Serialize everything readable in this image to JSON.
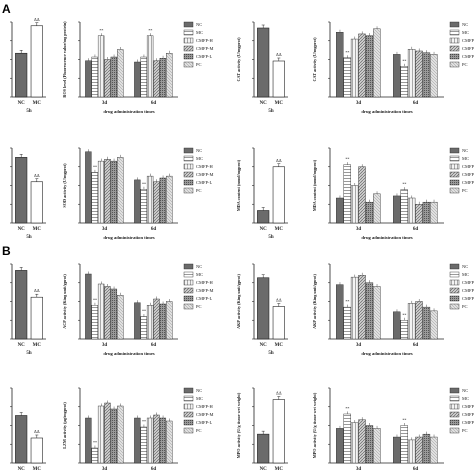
{
  "panel_letters": [
    "A",
    "B"
  ],
  "colors": {
    "nc": "#6b6b6b",
    "mc": "#ffffff",
    "cmfp_h": "#e3e3e3",
    "cmfp_m": "#bdbdbd",
    "cmfp_l": "#8f8f8f",
    "pc": "#d8d8d8",
    "ink": "#222222"
  },
  "chart_data": [
    {
      "type": "bar",
      "title": "",
      "xlabel": "",
      "ylabel": "",
      "categories": [
        "NC",
        "MC"
      ],
      "x_caption": "5h",
      "ylim": [
        0,
        300
      ],
      "yticks": [],
      "values": [
        175,
        285
      ],
      "sig": [
        "",
        "ΔΔ"
      ],
      "legend": []
    },
    {
      "type": "bar",
      "title": "",
      "xlabel": "drug administration times",
      "ylabel": "ROS level (Fluorescence value/mg protein)",
      "categories": [
        "3d",
        "6d"
      ],
      "ylim": [
        0,
        300
      ],
      "yticks": [],
      "series": [
        {
          "name": "NC",
          "values": [
            145,
            140
          ],
          "sig": [
            "",
            ""
          ]
        },
        {
          "name": "MC",
          "values": [
            160,
            160
          ],
          "sig": [
            "",
            ""
          ]
        },
        {
          "name": "CMFP-H",
          "values": [
            245,
            245
          ],
          "sig": [
            "**",
            "**"
          ]
        },
        {
          "name": "CMFP-M",
          "values": [
            150,
            145
          ],
          "sig": [
            "",
            ""
          ]
        },
        {
          "name": "CMFP-L",
          "values": [
            160,
            155
          ],
          "sig": [
            "",
            ""
          ]
        },
        {
          "name": "PC",
          "values": [
            190,
            175
          ],
          "sig": [
            "",
            ""
          ]
        }
      ],
      "legend": [
        "NC",
        "MC",
        "CMFP-H",
        "CMFP-M",
        "CMFP-L",
        "PC"
      ]
    },
    {
      "type": "bar",
      "title": "",
      "xlabel": "",
      "ylabel": "CAT activity (U/mgprot)",
      "categories": [
        "NC",
        "MC"
      ],
      "x_caption": "5h",
      "ylim": [
        0,
        1500
      ],
      "yticks": [],
      "values": [
        1380,
        720
      ],
      "sig": [
        "",
        "ΔΔ"
      ],
      "legend": []
    },
    {
      "type": "bar",
      "title": "",
      "xlabel": "drug administration times",
      "ylabel": "CAT activity (U/mgprot)",
      "categories": [
        "3d",
        "6d"
      ],
      "ylim": [
        0,
        2200
      ],
      "yticks": [],
      "series": [
        {
          "name": "NC",
          "values": [
            1900,
            1250
          ],
          "sig": [
            "",
            ""
          ]
        },
        {
          "name": "MC",
          "values": [
            1150,
            900
          ],
          "sig": [
            "**",
            "**"
          ]
        },
        {
          "name": "CMFP-H",
          "values": [
            1700,
            1400
          ],
          "sig": [
            "",
            ""
          ]
        },
        {
          "name": "CMFP-M",
          "values": [
            1850,
            1350
          ],
          "sig": [
            "",
            ""
          ]
        },
        {
          "name": "CMFP-L",
          "values": [
            1800,
            1300
          ],
          "sig": [
            "",
            ""
          ]
        },
        {
          "name": "PC",
          "values": [
            2000,
            1250
          ],
          "sig": [
            "",
            ""
          ]
        }
      ],
      "legend": [
        "NC",
        "MC",
        "CMFP-H",
        "CMFP-M",
        "CMFP-L",
        "PC"
      ]
    },
    {
      "type": "bar",
      "title": "",
      "xlabel": "",
      "ylabel": "",
      "categories": [
        "NC",
        "MC"
      ],
      "x_caption": "5h",
      "ylim": [
        0,
        200
      ],
      "yticks": [],
      "values": [
        175,
        110
      ],
      "sig": [
        "",
        "ΔΔ"
      ],
      "legend": []
    },
    {
      "type": "bar",
      "title": "",
      "xlabel": "drug administration times",
      "ylabel": "SOD activity (U/mgprot)",
      "categories": [
        "3d",
        "6d"
      ],
      "ylim": [
        0,
        200
      ],
      "yticks": [],
      "series": [
        {
          "name": "NC",
          "values": [
            190,
            115
          ],
          "sig": [
            "",
            ""
          ]
        },
        {
          "name": "MC",
          "values": [
            135,
            90
          ],
          "sig": [
            "**",
            "**"
          ]
        },
        {
          "name": "CMFP-H",
          "values": [
            165,
            125
          ],
          "sig": [
            "",
            ""
          ]
        },
        {
          "name": "CMFP-M",
          "values": [
            170,
            110
          ],
          "sig": [
            "",
            ""
          ]
        },
        {
          "name": "CMFP-L",
          "values": [
            165,
            120
          ],
          "sig": [
            "",
            ""
          ]
        },
        {
          "name": "PC",
          "values": [
            175,
            125
          ],
          "sig": [
            "",
            ""
          ]
        }
      ],
      "legend": [
        "NC",
        "MC",
        "CMFP-H",
        "CMFP-M",
        "CMFP-L",
        "PC"
      ]
    },
    {
      "type": "bar",
      "title": "",
      "xlabel": "",
      "ylabel": "MDA content (nmol/mgprot)",
      "categories": [
        "NC",
        "MC"
      ],
      "x_caption": "5h",
      "ylim": [
        0,
        18
      ],
      "yticks": [],
      "values": [
        3,
        13.5
      ],
      "sig": [
        "",
        "ΔΔ"
      ],
      "legend": []
    },
    {
      "type": "bar",
      "title": "",
      "xlabel": "drug administration times",
      "ylabel": "MDA content (nmol/mgprot)",
      "categories": [
        "3d",
        "6d"
      ],
      "ylim": [
        0,
        18
      ],
      "yticks": [],
      "series": [
        {
          "name": "NC",
          "values": [
            6,
            6.5
          ],
          "sig": [
            "",
            ""
          ]
        },
        {
          "name": "MC",
          "values": [
            14,
            8
          ],
          "sig": [
            "**",
            "**"
          ]
        },
        {
          "name": "CMFP-H",
          "values": [
            9,
            6
          ],
          "sig": [
            "",
            ""
          ]
        },
        {
          "name": "CMFP-M",
          "values": [
            13.5,
            4.5
          ],
          "sig": [
            "",
            ""
          ]
        },
        {
          "name": "CMFP-L",
          "values": [
            5,
            5
          ],
          "sig": [
            "",
            ""
          ]
        },
        {
          "name": "PC",
          "values": [
            7,
            5
          ],
          "sig": [
            "",
            ""
          ]
        }
      ],
      "legend": [
        "NC",
        "MC",
        "CMFP-H",
        "CMFP-M",
        "CMFP-L",
        "PC"
      ]
    },
    {
      "type": "bar",
      "title": "",
      "xlabel": "",
      "ylabel": "",
      "categories": [
        "NC",
        "MC"
      ],
      "x_caption": "5h",
      "ylim": [
        0,
        350
      ],
      "yticks": [],
      "values": [
        320,
        195
      ],
      "sig": [
        "",
        "ΔΔ"
      ],
      "legend": []
    },
    {
      "type": "bar",
      "title": "",
      "xlabel": "drug administration times",
      "ylabel": "ACP activity (King unit/gprot)",
      "categories": [
        "3d",
        "6d"
      ],
      "ylim": [
        0,
        600
      ],
      "yticks": [],
      "series": [
        {
          "name": "NC",
          "values": [
            520,
            290
          ],
          "sig": [
            "",
            ""
          ]
        },
        {
          "name": "MC",
          "values": [
            270,
            180
          ],
          "sig": [
            "**",
            "**"
          ]
        },
        {
          "name": "CMFP-H",
          "values": [
            440,
            270
          ],
          "sig": [
            "",
            ""
          ]
        },
        {
          "name": "CMFP-M",
          "values": [
            420,
            320
          ],
          "sig": [
            "",
            ""
          ]
        },
        {
          "name": "CMFP-L",
          "values": [
            400,
            280
          ],
          "sig": [
            "",
            ""
          ]
        },
        {
          "name": "PC",
          "values": [
            350,
            300
          ],
          "sig": [
            "",
            ""
          ]
        }
      ],
      "legend": [
        "NC",
        "MC",
        "CMFP-H",
        "CMFP-M",
        "CMFP-L",
        "PC"
      ]
    },
    {
      "type": "bar",
      "title": "",
      "xlabel": "",
      "ylabel": "AKP activity (King unit/gprot)",
      "categories": [
        "NC",
        "MC"
      ],
      "x_caption": "5h",
      "ylim": [
        0,
        300
      ],
      "yticks": [],
      "values": [
        245,
        130
      ],
      "sig": [
        "",
        "ΔΔ"
      ],
      "legend": []
    },
    {
      "type": "bar",
      "title": "",
      "xlabel": "drug administration times",
      "ylabel": "AKP activity (King unit/gprot)",
      "categories": [
        "3d",
        "6d"
      ],
      "ylim": [
        0,
        400
      ],
      "yticks": [],
      "series": [
        {
          "name": "NC",
          "values": [
            290,
            145
          ],
          "sig": [
            "",
            ""
          ]
        },
        {
          "name": "MC",
          "values": [
            170,
            100
          ],
          "sig": [
            "**",
            "**"
          ]
        },
        {
          "name": "CMFP-H",
          "values": [
            330,
            190
          ],
          "sig": [
            "",
            ""
          ]
        },
        {
          "name": "CMFP-M",
          "values": [
            340,
            200
          ],
          "sig": [
            "",
            ""
          ]
        },
        {
          "name": "CMFP-L",
          "values": [
            300,
            170
          ],
          "sig": [
            "",
            ""
          ]
        },
        {
          "name": "PC",
          "values": [
            280,
            150
          ],
          "sig": [
            "",
            ""
          ]
        }
      ],
      "legend": [
        "NC",
        "MC",
        "CMFP-H",
        "CMFP-M",
        "CMFP-L",
        "PC"
      ]
    },
    {
      "type": "bar",
      "title": "",
      "xlabel": "",
      "ylabel": "",
      "categories": [
        "NC",
        "MC"
      ],
      "x_caption": "5h",
      "ylim": [
        0,
        15
      ],
      "yticks": [],
      "values": [
        9.5,
        5
      ],
      "sig": [
        "",
        "ΔΔ"
      ],
      "legend": []
    },
    {
      "type": "bar",
      "title": "",
      "xlabel": "drug administration times",
      "ylabel": "LZM activity (μg/mgprot)",
      "categories": [
        "3d",
        "6d"
      ],
      "ylim": [
        0,
        25
      ],
      "yticks": [],
      "series": [
        {
          "name": "NC",
          "values": [
            15,
            15
          ],
          "sig": [
            "",
            ""
          ]
        },
        {
          "name": "MC",
          "values": [
            5,
            12
          ],
          "sig": [
            "**",
            "**"
          ]
        },
        {
          "name": "CMFP-H",
          "values": [
            19,
            15
          ],
          "sig": [
            "",
            ""
          ]
        },
        {
          "name": "CMFP-M",
          "values": [
            20,
            16
          ],
          "sig": [
            "",
            ""
          ]
        },
        {
          "name": "CMFP-L",
          "values": [
            18,
            15
          ],
          "sig": [
            "",
            ""
          ]
        },
        {
          "name": "PC",
          "values": [
            19,
            14
          ],
          "sig": [
            "",
            ""
          ]
        }
      ],
      "legend": [
        "NC",
        "MC",
        "CMFP-H",
        "CMFP-M",
        "CMFP-L",
        "PC"
      ]
    },
    {
      "type": "bar",
      "title": "",
      "xlabel": "",
      "ylabel": "MPO activity (U/g tissue wet weight)",
      "categories": [
        "NC",
        "MC"
      ],
      "x_caption": "5h",
      "ylim": [
        0,
        13
      ],
      "yticks": [],
      "values": [
        5,
        11
      ],
      "sig": [
        "",
        "ΔΔ"
      ],
      "legend": []
    },
    {
      "type": "bar",
      "title": "",
      "xlabel": "drug administration times",
      "ylabel": "MPO activity (U/g tissue wet weight)",
      "categories": [
        "3d",
        "6d"
      ],
      "ylim": [
        0,
        13
      ],
      "yticks": [],
      "series": [
        {
          "name": "NC",
          "values": [
            6,
            4.5
          ],
          "sig": [
            "",
            ""
          ]
        },
        {
          "name": "MC",
          "values": [
            8.5,
            6.5
          ],
          "sig": [
            "**",
            "**"
          ]
        },
        {
          "name": "CMFP-H",
          "values": [
            7,
            4
          ],
          "sig": [
            "",
            ""
          ]
        },
        {
          "name": "CMFP-M",
          "values": [
            7.5,
            4.5
          ],
          "sig": [
            "",
            ""
          ]
        },
        {
          "name": "CMFP-L",
          "values": [
            6.5,
            5
          ],
          "sig": [
            "",
            ""
          ]
        },
        {
          "name": "PC",
          "values": [
            6,
            4.5
          ],
          "sig": [
            "",
            ""
          ]
        }
      ],
      "legend": [
        "NC",
        "MC",
        "CMFP-H",
        "CMFP-M",
        "CMFP-L",
        "PC"
      ]
    }
  ]
}
